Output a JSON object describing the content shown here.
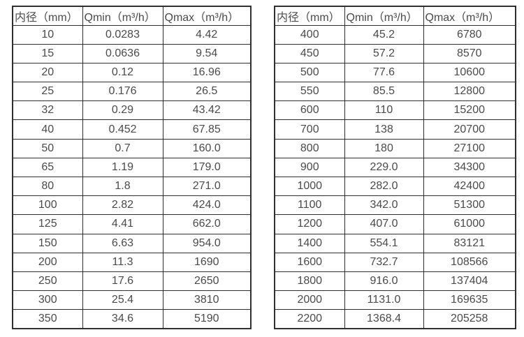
{
  "table_left": {
    "name": "flow-rate-table-small-diameters",
    "headers": [
      "内径（mm）",
      "Qmin（m³/h）",
      "Qmax（m³/h）"
    ],
    "rows": [
      [
        "10",
        "0.0283",
        "4.42"
      ],
      [
        "15",
        "0.0636",
        "9.54"
      ],
      [
        "20",
        "0.12",
        "16.96"
      ],
      [
        "25",
        "0.176",
        "26.5"
      ],
      [
        "32",
        "0.29",
        "43.42"
      ],
      [
        "40",
        "0.452",
        "67.85"
      ],
      [
        "50",
        "0.7",
        "160.0"
      ],
      [
        "65",
        "1.19",
        "179.0"
      ],
      [
        "80",
        "1.8",
        "271.0"
      ],
      [
        "100",
        "2.82",
        "424.0"
      ],
      [
        "125",
        "4.41",
        "662.0"
      ],
      [
        "150",
        "6.63",
        "954.0"
      ],
      [
        "200",
        "11.3",
        "1690"
      ],
      [
        "250",
        "17.6",
        "2650"
      ],
      [
        "300",
        "25.4",
        "3810"
      ],
      [
        "350",
        "34.6",
        "5190"
      ]
    ]
  },
  "table_right": {
    "name": "flow-rate-table-large-diameters",
    "headers": [
      "内径（mm）",
      "Qmin（m³/h）",
      "Qmax（m³/h）"
    ],
    "rows": [
      [
        "400",
        "45.2",
        "6780"
      ],
      [
        "450",
        "57.2",
        "8570"
      ],
      [
        "500",
        "77.6",
        "10600"
      ],
      [
        "550",
        "85.5",
        "12800"
      ],
      [
        "600",
        "110",
        "15200"
      ],
      [
        "700",
        "138",
        "20700"
      ],
      [
        "800",
        "180",
        "27100"
      ],
      [
        "900",
        "229.0",
        "34300"
      ],
      [
        "1000",
        "282.0",
        "42400"
      ],
      [
        "1100",
        "342.0",
        "51300"
      ],
      [
        "1200",
        "407.0",
        "61000"
      ],
      [
        "1400",
        "554.1",
        "83121"
      ],
      [
        "1600",
        "732.7",
        "108566"
      ],
      [
        "1800",
        "916.0",
        "137404"
      ],
      [
        "2000",
        "1131.0",
        "169635"
      ],
      [
        "2200",
        "1368.4",
        "205258"
      ]
    ]
  },
  "colors": {
    "text": "#4a4a4a",
    "border": "#2f2f2f",
    "background": "#ffffff"
  }
}
